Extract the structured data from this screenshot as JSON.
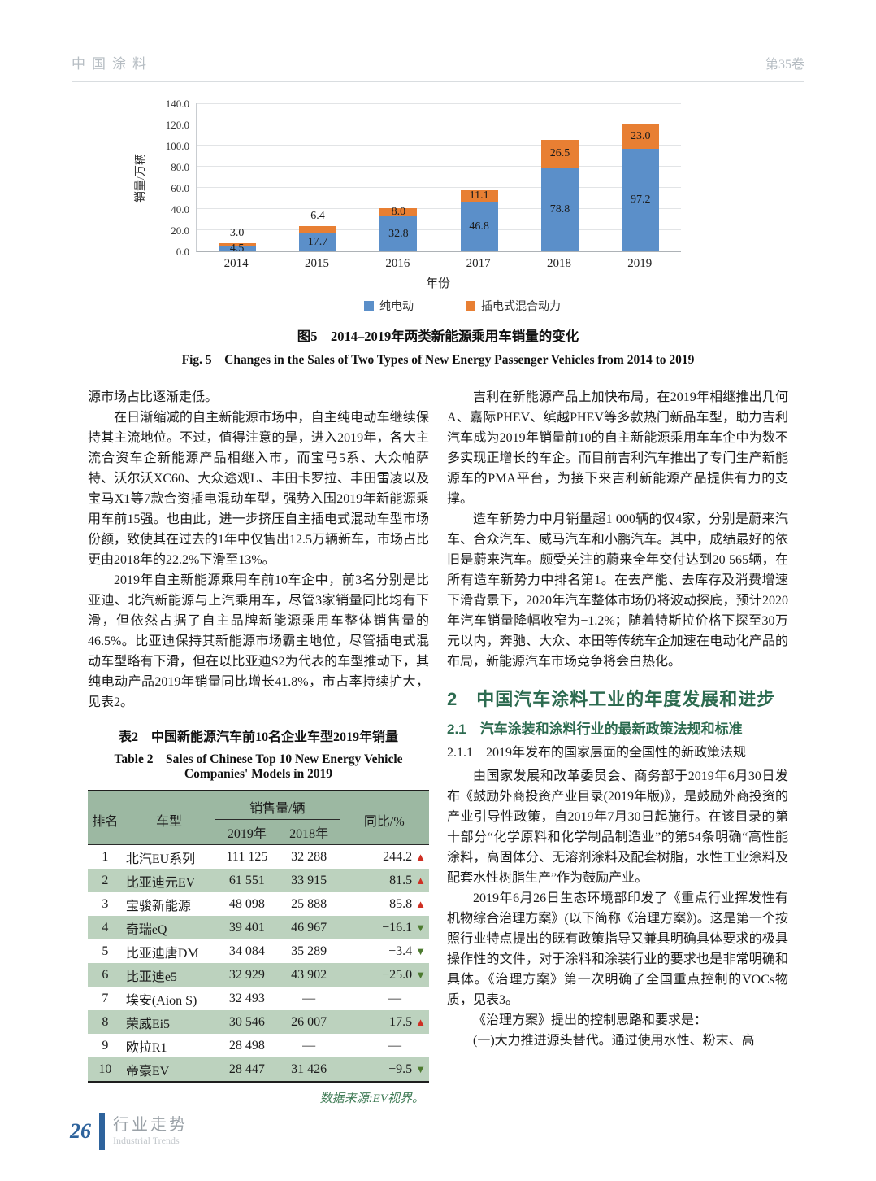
{
  "page": {
    "header_left": "中国涂料",
    "header_right": "第35卷",
    "footer_page": "26",
    "footer_cn": "行业走势",
    "footer_en": "Industrial Trends"
  },
  "chart_data": {
    "type": "bar",
    "stacked": true,
    "title_cn": "图5　2014–2019年两类新能源乘用车销量的变化",
    "title_en": "Fig. 5　Changes in the Sales of Two Types of New Energy Passenger Vehicles from 2014 to 2019",
    "ylabel": "销量/万辆",
    "xlabel": "年份",
    "ylim": [
      0,
      140
    ],
    "yticks": [
      "0.0",
      "20.0",
      "40.0",
      "60.0",
      "80.0",
      "100.0",
      "120.0",
      "140.0"
    ],
    "grid": true,
    "legend_position": "bottom",
    "categories": [
      "2014",
      "2015",
      "2016",
      "2017",
      "2018",
      "2019"
    ],
    "series": [
      {
        "name": "纯电动",
        "color": "#5b8fc9",
        "values": [
          4.5,
          17.7,
          32.8,
          46.8,
          78.8,
          97.2
        ]
      },
      {
        "name": "插电式混合动力",
        "color": "#e87f33",
        "values": [
          3.0,
          6.4,
          8.0,
          11.1,
          26.5,
          23.0
        ]
      }
    ]
  },
  "left_column": {
    "paragraphs": [
      "源市场占比逐渐走低。",
      "在日渐缩减的自主新能源市场中，自主纯电动车继续保持其主流地位。不过，值得注意的是，进入2019年，各大主流合资车企新能源产品相继入市，而宝马5系、大众帕萨特、沃尔沃XC60、大众途观L、丰田卡罗拉、丰田雷凌以及宝马X1等7款合资插电混动车型，强势入围2019年新能源乘用车前15强。也由此，进一步挤压自主插电式混动车型市场份额，致使其在过去的1年中仅售出12.5万辆新车，市场占比更由2018年的22.2%下滑至13%。",
      "2019年自主新能源乘用车前10车企中，前3名分别是比亚迪、北汽新能源与上汽乘用车，尽管3家销量同比均有下滑，但依然占据了自主品牌新能源乘用车整体销售量的46.5%。比亚迪保持其新能源市场霸主地位，尽管插电式混动车型略有下滑，但在以比亚迪S2为代表的车型推动下，其纯电动产品2019年销量同比增长41.8%，市占率持续扩大，见表2。"
    ]
  },
  "table": {
    "title_cn": "表2　中国新能源汽车前10名企业车型2019年销量",
    "title_en1": "Table 2　Sales of Chinese Top 10 New Energy Vehicle",
    "title_en2": "Companies' Models in 2019",
    "headers": {
      "rank": "排名",
      "model": "车型",
      "sales_group": "销售量/辆",
      "y2019": "2019年",
      "y2018": "2018年",
      "yoy": "同比/%"
    },
    "rows": [
      {
        "rank": "1",
        "model": "北汽EU系列",
        "y2019": "111 125",
        "y2018": "32 288",
        "yoy": "244.2",
        "dir": "up"
      },
      {
        "rank": "2",
        "model": "比亚迪元EV",
        "y2019": "61 551",
        "y2018": "33 915",
        "yoy": "81.5",
        "dir": "up"
      },
      {
        "rank": "3",
        "model": "宝骏新能源",
        "y2019": "48 098",
        "y2018": "25 888",
        "yoy": "85.8",
        "dir": "up"
      },
      {
        "rank": "4",
        "model": "奇瑞eQ",
        "y2019": "39 401",
        "y2018": "46 967",
        "yoy": "−16.1",
        "dir": "down"
      },
      {
        "rank": "5",
        "model": "比亚迪唐DM",
        "y2019": "34 084",
        "y2018": "35 289",
        "yoy": "−3.4",
        "dir": "down"
      },
      {
        "rank": "6",
        "model": "比亚迪e5",
        "y2019": "32 929",
        "y2018": "43 902",
        "yoy": "−25.0",
        "dir": "down"
      },
      {
        "rank": "7",
        "model": "埃安(Aion S)",
        "y2019": "32 493",
        "y2018": "—",
        "yoy": "—",
        "dir": ""
      },
      {
        "rank": "8",
        "model": "荣威Ei5",
        "y2019": "30 546",
        "y2018": "26 007",
        "yoy": "17.5",
        "dir": "up"
      },
      {
        "rank": "9",
        "model": "欧拉R1",
        "y2019": "28 498",
        "y2018": "—",
        "yoy": "—",
        "dir": ""
      },
      {
        "rank": "10",
        "model": "帝豪EV",
        "y2019": "28 447",
        "y2018": "31 426",
        "yoy": "−9.5",
        "dir": "down"
      }
    ],
    "source": "数据来源:EV视界。"
  },
  "right_column": {
    "paragraphs": [
      "吉利在新能源产品上加快布局，在2019年相继推出几何A、嘉际PHEV、缤越PHEV等多款热门新品车型，助力吉利汽车成为2019年销量前10的自主新能源乘用车车企中为数不多实现正增长的车企。而目前吉利汽车推出了专门生产新能源车的PMA平台，为接下来吉利新能源产品提供有力的支撑。",
      "造车新势力中月销量超1 000辆的仅4家，分别是蔚来汽车、合众汽车、威马汽车和小鹏汽车。其中，成绩最好的依旧是蔚来汽车。颇受关注的蔚来全年交付达到20 565辆，在所有造车新势力中排名第1。在去产能、去库存及消费增速下滑背景下，2020年汽车整体市场仍将波动探底，预计2020年汽车销量降幅收窄为−1.2%；随着特斯拉价格下探至30万元以内，奔驰、大众、本田等传统车企加速在电动化产品的布局，新能源汽车市场竞争将会白热化。"
    ],
    "h2": "2　中国汽车涂料工业的年度发展和进步",
    "h21": "2.1　汽车涂装和涂料行业的最新政策法规和标准",
    "h211": "2.1.1　2019年发布的国家层面的全国性的新政策法规",
    "paragraphs2": [
      "由国家发展和改革委员会、商务部于2019年6月30日发布《鼓励外商投资产业目录(2019年版)》，是鼓励外商投资的产业引导性政策，自2019年7月30日起施行。在该目录的第十部分“化学原料和化学制品制造业”的第54条明确“高性能涂料，高固体分、无溶剂涂料及配套树脂，水性工业涂料及配套水性树脂生产”作为鼓励产业。",
      "2019年6月26日生态环境部印发了《重点行业挥发性有机物综合治理方案》(以下简称《治理方案》)。这是第一个按照行业特点提出的既有政策指导又兼具明确具体要求的极具操作性的文件，对于涂料和涂装行业的要求也是非常明确和具体。《治理方案》第一次明确了全国重点控制的VOCs物质，见表3。",
      "《治理方案》提出的控制思路和要求是：",
      "(一)大力推进源头替代。通过使用水性、粉末、高"
    ]
  }
}
